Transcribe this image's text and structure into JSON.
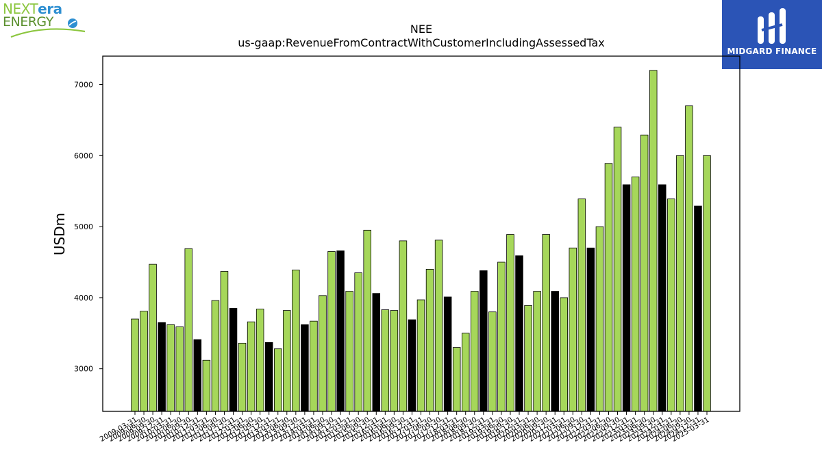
{
  "chart_data": {
    "type": "bar",
    "title": "NEE",
    "subtitle": "us-gaap:RevenueFromContractWithCustomerIncludingAssessedTax",
    "xlabel": "",
    "ylabel": "USDm",
    "ylim": [
      2400,
      7400
    ],
    "yticks": [
      3000,
      4000,
      5000,
      6000,
      7000
    ],
    "grid": false,
    "colors": {
      "quarter": "#a6d75a",
      "q4": "#000000",
      "edge": "#000000"
    },
    "categories": [
      "2009-03-31",
      "2009-06-30",
      "2009-09-30",
      "2009-12-31",
      "2010-03-31",
      "2010-06-30",
      "2010-09-30",
      "2010-12-31",
      "2011-03-31",
      "2011-06-30",
      "2011-09-30",
      "2011-12-31",
      "2012-03-31",
      "2012-06-30",
      "2012-09-30",
      "2012-12-31",
      "2013-03-31",
      "2013-06-30",
      "2013-09-30",
      "2013-12-31",
      "2014-03-31",
      "2014-06-30",
      "2014-09-30",
      "2014-12-31",
      "2015-03-31",
      "2015-06-30",
      "2015-09-30",
      "2015-12-31",
      "2016-03-31",
      "2016-06-30",
      "2016-09-30",
      "2016-12-31",
      "2017-03-31",
      "2017-06-30",
      "2017-09-30",
      "2017-12-31",
      "2018-03-31",
      "2018-06-30",
      "2018-09-30",
      "2018-12-31",
      "2019-03-31",
      "2019-06-30",
      "2019-09-30",
      "2019-12-31",
      "2020-03-31",
      "2020-06-30",
      "2020-09-30",
      "2020-12-31",
      "2021-03-31",
      "2021-06-30",
      "2021-09-30",
      "2021-12-31",
      "2022-03-31",
      "2022-06-30",
      "2022-09-30",
      "2022-12-31",
      "2023-03-31",
      "2023-06-30",
      "2023-09-30",
      "2023-12-31",
      "2024-03-31",
      "2024-06-30",
      "2024-09-30",
      "2024-12-31",
      "2025-03-31"
    ],
    "values": [
      3700,
      3810,
      4470,
      3650,
      3620,
      3590,
      4690,
      3410,
      3120,
      3960,
      4370,
      3850,
      3360,
      3660,
      3840,
      3370,
      3280,
      3820,
      4390,
      3620,
      3670,
      4030,
      4650,
      4660,
      4090,
      4350,
      4950,
      4060,
      3830,
      3820,
      4800,
      3690,
      3970,
      4400,
      4810,
      4010,
      3300,
      3500,
      4090,
      4380,
      3800,
      4500,
      4890,
      4590,
      3890,
      4090,
      4890,
      4090,
      4000,
      4700,
      5390,
      4700,
      5000,
      5890,
      6400,
      5590,
      5700,
      6290,
      7200,
      5590,
      5390,
      6000,
      6700,
      5290,
      6000
    ],
    "highlighted_indices": [
      3,
      7,
      11,
      15,
      19,
      23,
      27,
      31,
      35,
      39,
      43,
      47,
      51,
      55,
      59,
      63
    ]
  },
  "logos": {
    "left": {
      "line1_a": "NEXT",
      "line1_b": "era",
      "line2": "ENERGY"
    },
    "right": {
      "text": "MIDGARD FINANCE"
    }
  }
}
